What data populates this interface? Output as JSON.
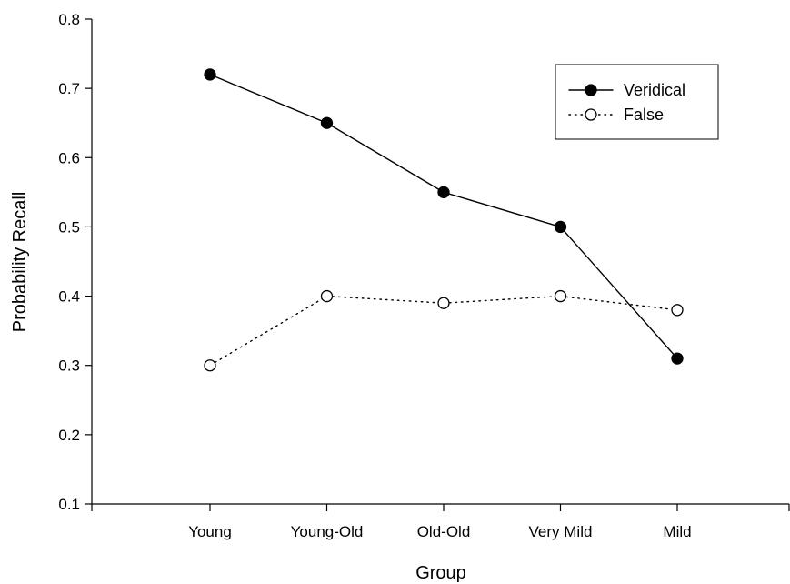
{
  "chart_data": {
    "type": "line",
    "categories": [
      "Young",
      "Young-Old",
      "Old-Old",
      "Very Mild",
      "Mild"
    ],
    "series": [
      {
        "name": "Veridical",
        "values": [
          0.72,
          0.65,
          0.55,
          0.5,
          0.31
        ],
        "marker": "filled-circle",
        "line": "solid",
        "color": "#000000"
      },
      {
        "name": "False",
        "values": [
          0.3,
          0.4,
          0.39,
          0.4,
          0.38
        ],
        "marker": "open-circle",
        "line": "dotted",
        "color": "#000000"
      }
    ],
    "xlabel": "Group",
    "ylabel": "Probability Recall",
    "ylim": [
      0.1,
      0.8
    ],
    "yticks": [
      "0.1",
      "0.2",
      "0.3",
      "0.4",
      "0.5",
      "0.6",
      "0.7",
      "0.8"
    ],
    "grid": false,
    "legend_position": "top-right"
  }
}
